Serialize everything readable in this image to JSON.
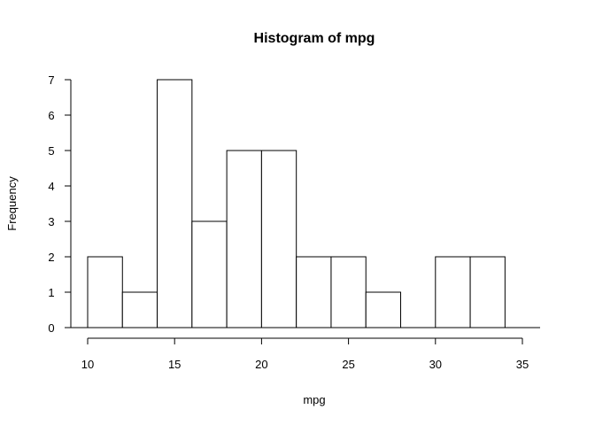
{
  "chart_data": {
    "type": "bar",
    "title": "Histogram of mpg",
    "xlabel": "mpg",
    "ylabel": "Frequency",
    "bins": [
      {
        "start": 10,
        "end": 12,
        "value": 2
      },
      {
        "start": 12,
        "end": 14,
        "value": 1
      },
      {
        "start": 14,
        "end": 16,
        "value": 7
      },
      {
        "start": 16,
        "end": 18,
        "value": 3
      },
      {
        "start": 18,
        "end": 20,
        "value": 5
      },
      {
        "start": 20,
        "end": 22,
        "value": 5
      },
      {
        "start": 22,
        "end": 24,
        "value": 2
      },
      {
        "start": 24,
        "end": 26,
        "value": 2
      },
      {
        "start": 26,
        "end": 28,
        "value": 1
      },
      {
        "start": 28,
        "end": 30,
        "value": 0
      },
      {
        "start": 30,
        "end": 32,
        "value": 2
      },
      {
        "start": 32,
        "end": 34,
        "value": 2
      }
    ],
    "xlim": [
      10,
      35
    ],
    "ylim": [
      0,
      7
    ],
    "x_ticks": [
      10,
      15,
      20,
      25,
      30,
      35
    ],
    "y_ticks": [
      0,
      1,
      2,
      3,
      4,
      5,
      6,
      7
    ],
    "grid": false
  }
}
